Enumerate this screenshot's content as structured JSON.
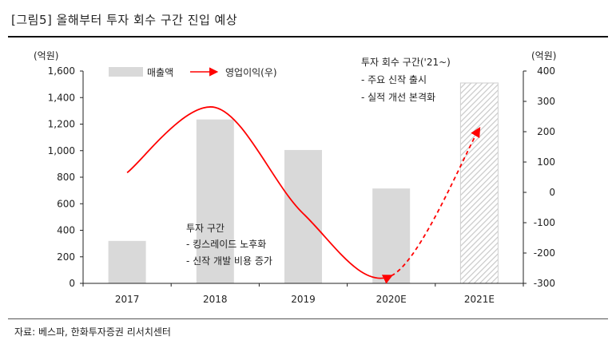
{
  "title": "[그림5]  올해부터 투자 회수 구간 진입 예상",
  "source": "자료: 베스파, 한화투자증권 리서치센터",
  "chart_data": {
    "type": "bar",
    "categories": [
      "2017",
      "2018",
      "2019",
      "2020E",
      "2021E"
    ],
    "series": [
      {
        "name": "매출액",
        "type": "bar",
        "axis": "left",
        "values": [
          320,
          1235,
          1005,
          715,
          1510
        ],
        "color": "#d9d9d9",
        "hatched_categories": [
          "2021E"
        ]
      },
      {
        "name": "영업이익(우)",
        "type": "line",
        "axis": "right",
        "values": [
          65,
          280,
          -70,
          -275,
          210
        ],
        "color": "#ff0000",
        "dashed_from": "2020E"
      }
    ],
    "y_left": {
      "unit": "(억원)",
      "ylim": [
        0,
        1600
      ],
      "ticks": [
        0,
        200,
        400,
        600,
        800,
        1000,
        1200,
        1400,
        1600
      ],
      "tick_labels": [
        "0",
        "200",
        "400",
        "600",
        "800",
        "1,000",
        "1,200",
        "1,400",
        "1,600"
      ]
    },
    "y_right": {
      "unit": "(억원)",
      "ylim": [
        -300,
        400
      ],
      "ticks": [
        -300,
        -200,
        -100,
        0,
        100,
        200,
        300,
        400
      ],
      "tick_labels": [
        "-300",
        "-200",
        "-100",
        "0",
        "100",
        "200",
        "300",
        "400"
      ]
    },
    "legend": {
      "placement": "top-left",
      "items": [
        "매출액",
        "영업이익(우)"
      ]
    },
    "annotations": [
      {
        "anchor": "bottom-middle",
        "lines": [
          "투자 구간",
          "- 킹스레이드 노후화",
          "- 신작 개발 비용 증가"
        ]
      },
      {
        "anchor": "top-right",
        "lines": [
          "투자 회수 구간('21~)",
          "- 주요 신작 출시",
          "- 실적 개선 본격화"
        ]
      }
    ],
    "grid": false
  }
}
